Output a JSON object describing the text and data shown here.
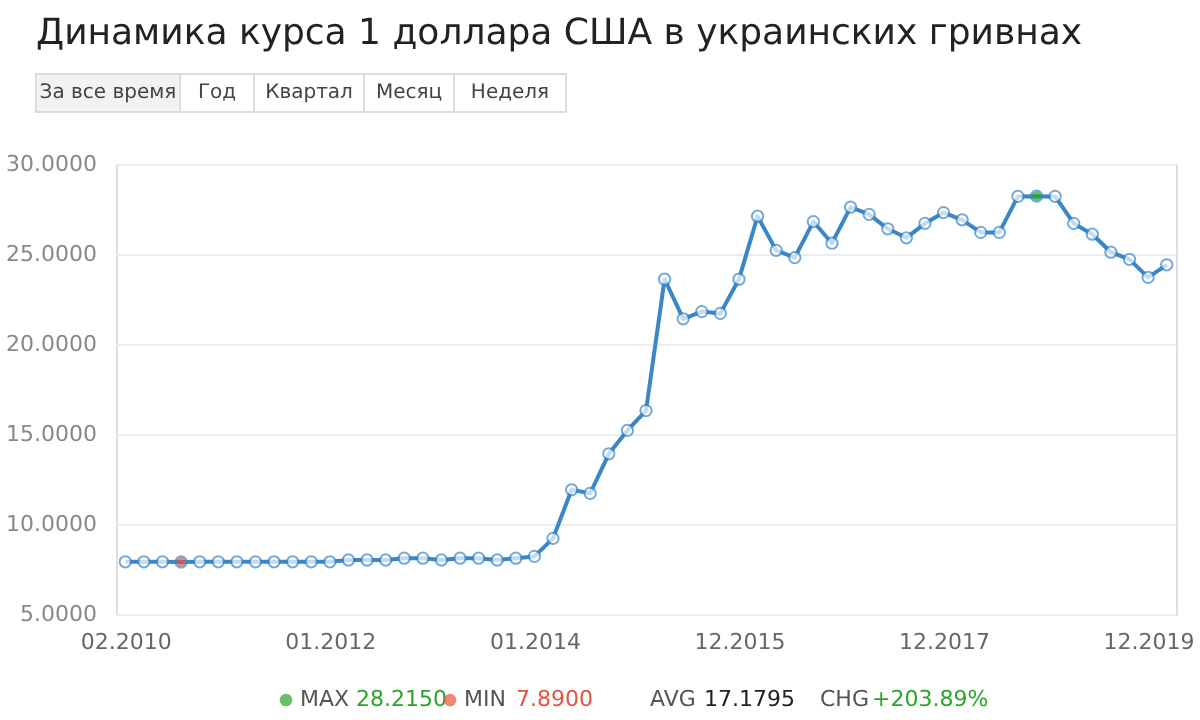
{
  "chart_data": {
    "type": "line",
    "title": "Динамика курса 1 доллара США в украинских гривнах",
    "categories": [
      "02.2010",
      null,
      null,
      null,
      null,
      null,
      null,
      null,
      null,
      null,
      null,
      "01.2012",
      null,
      null,
      null,
      null,
      null,
      null,
      null,
      null,
      null,
      null,
      "01.2014",
      null,
      null,
      null,
      null,
      null,
      null,
      null,
      null,
      null,
      null,
      "12.2015",
      null,
      null,
      null,
      null,
      null,
      null,
      null,
      null,
      null,
      null,
      "12.2017",
      null,
      null,
      null,
      null,
      null,
      null,
      null,
      null,
      null,
      null,
      "12.2019",
      null
    ],
    "series": [
      {
        "color": "#3a87c8",
        "values": [
          7.9,
          7.9,
          7.9,
          7.89,
          7.9,
          7.9,
          7.9,
          7.9,
          7.9,
          7.9,
          7.9,
          7.9,
          8.0,
          8.0,
          8.0,
          8.1,
          8.1,
          8.0,
          8.1,
          8.1,
          8.0,
          8.1,
          8.2,
          9.2,
          11.9,
          11.7,
          13.9,
          15.2,
          16.3,
          23.6,
          21.4,
          21.8,
          21.7,
          23.6,
          27.1,
          25.2,
          24.8,
          26.8,
          25.6,
          27.6,
          27.2,
          26.4,
          25.9,
          26.7,
          27.3,
          26.9,
          26.2,
          26.2,
          28.2,
          28.215,
          28.2,
          26.7,
          26.1,
          25.1,
          24.7,
          23.7,
          24.4
        ],
        "colors": [
          "#ffffff",
          "#ffffff",
          "#ffffff",
          "#e8523f",
          "#ffffff",
          "#ffffff",
          "#ffffff",
          "#ffffff",
          "#ffffff",
          "#ffffff",
          "#ffffff",
          "#ffffff",
          "#ffffff",
          "#ffffff",
          "#ffffff",
          "#ffffff",
          "#ffffff",
          "#ffffff",
          "#ffffff",
          "#ffffff",
          "#ffffff",
          "#ffffff",
          "#ffffff",
          "#ffffff",
          "#ffffff",
          "#ffffff",
          "#ffffff",
          "#ffffff",
          "#ffffff",
          "#ffffff",
          "#ffffff",
          "#ffffff",
          "#ffffff",
          "#ffffff",
          "#ffffff",
          "#ffffff",
          "#ffffff",
          "#ffffff",
          "#ffffff",
          "#ffffff",
          "#ffffff",
          "#ffffff",
          "#ffffff",
          "#ffffff",
          "#ffffff",
          "#ffffff",
          "#ffffff",
          "#ffffff",
          "#ffffff",
          "#2aa52a",
          "#ffffff",
          "#ffffff",
          "#ffffff",
          "#ffffff",
          "#ffffff",
          "#ffffff",
          "#ffffff"
        ]
      }
    ],
    "ylim": [
      5,
      30
    ],
    "yticks": [
      {
        "value": 5,
        "label": "5.0000"
      },
      {
        "value": 10,
        "label": "10.0000"
      },
      {
        "value": 15,
        "label": "15.0000"
      },
      {
        "value": 20,
        "label": "20.0000"
      },
      {
        "value": 25,
        "label": "25.0000"
      },
      {
        "value": 30,
        "label": "30.0000"
      }
    ],
    "grid": "y",
    "marker": "circle",
    "line_style": "solid",
    "annotations": [
      "За все время",
      "Год",
      "Квартал",
      "Месяц",
      "Неделя",
      "MAX",
      "28.2150",
      "MIN",
      "7.8900",
      "AVG",
      "17.1795",
      "CHG",
      "+203.89%"
    ]
  }
}
